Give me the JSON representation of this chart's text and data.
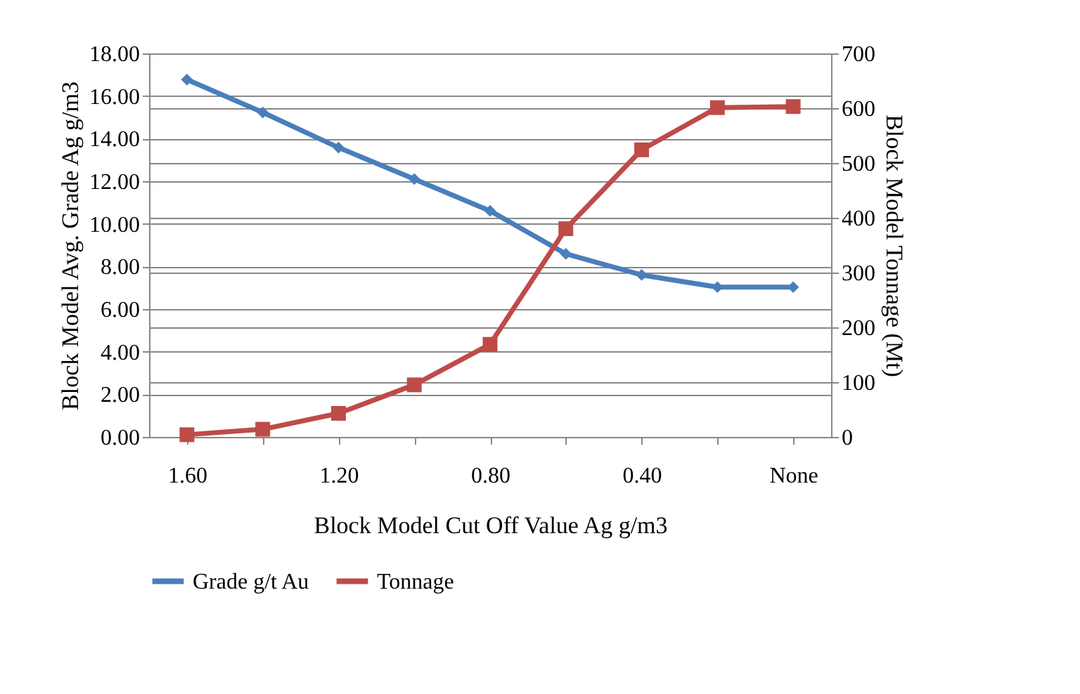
{
  "chart_data": {
    "type": "line",
    "xlabel": "Block Model Cut Off Value Ag g/m3",
    "ylabel": "Block Model Avg. Grade Ag g/m3",
    "y2label": "Block Model Tonnage (Mt)",
    "categories": [
      "1.60",
      null,
      "1.20",
      null,
      "0.80",
      null,
      "0.40",
      null,
      "None"
    ],
    "series": [
      {
        "name": "Grade g/t Au",
        "color": "#4a7ebb",
        "marker": "diamond",
        "values": [
          16.77,
          15.23,
          13.58,
          12.1,
          10.61,
          8.59,
          7.6,
          7.03,
          7.03
        ]
      },
      {
        "name": "Tonnage",
        "color": "#be4b48",
        "marker": "square",
        "axis": "y2",
        "values": [
          4,
          14,
          43,
          95,
          169,
          380,
          524,
          601,
          603
        ]
      }
    ],
    "ylim": [
      0,
      18
    ],
    "yticks": [
      {
        "value": 0,
        "label": "0.00"
      },
      {
        "value": 2,
        "label": "2.00"
      },
      {
        "value": 4,
        "label": "4.00"
      },
      {
        "value": 6,
        "label": "6.00"
      },
      {
        "value": 8,
        "label": "8.00"
      },
      {
        "value": 10,
        "label": "10.00"
      },
      {
        "value": 12,
        "label": "12.00"
      },
      {
        "value": 14,
        "label": "14.00"
      },
      {
        "value": 16,
        "label": "16.00"
      },
      {
        "value": 18,
        "label": "18.00"
      }
    ],
    "y2lim": [
      0,
      700
    ],
    "y2ticks": [
      0,
      100,
      200,
      300,
      400,
      500,
      600,
      700
    ],
    "grid": "y",
    "legend": "bottom"
  }
}
